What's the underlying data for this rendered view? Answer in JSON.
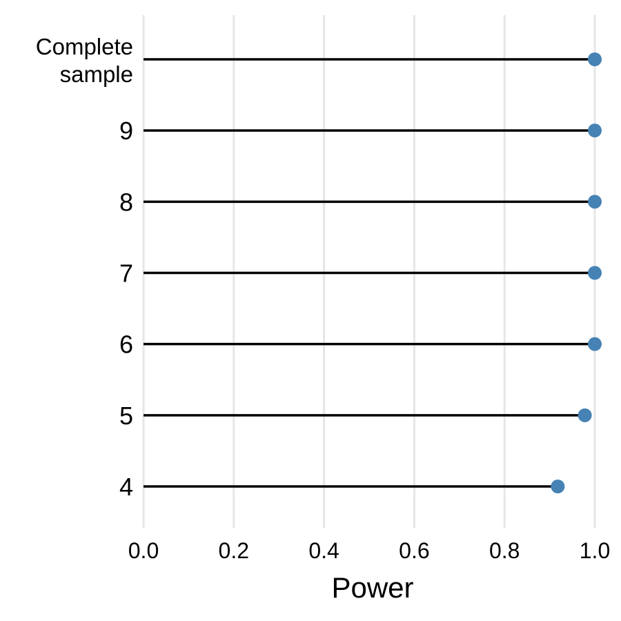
{
  "chart_data": {
    "type": "lollipop",
    "xlabel": "Power",
    "ylabel": "",
    "xlim": [
      0,
      1
    ],
    "xticks": [
      "0.0",
      "0.2",
      "0.4",
      "0.6",
      "0.8",
      "1.0"
    ],
    "grid": "vertical",
    "point_color": "#4682b4",
    "stem_color": "#000000",
    "categories": [
      "Complete sample",
      "9",
      "8",
      "7",
      "6",
      "5",
      "4"
    ],
    "values": [
      1.0,
      1.0,
      1.0,
      1.0,
      1.0,
      0.978,
      0.918
    ]
  }
}
